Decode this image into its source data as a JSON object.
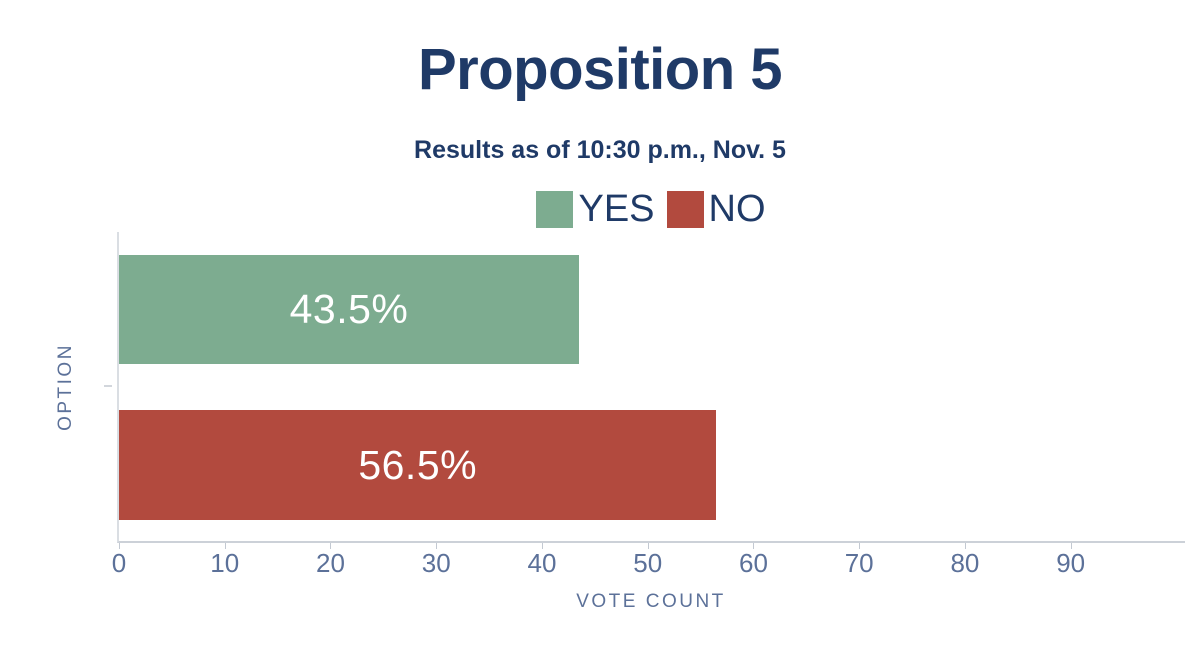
{
  "title": "Proposition 5",
  "subtitle": "Results as of 10:30 p.m., Nov. 5",
  "legend": [
    {
      "name": "yes",
      "label": "YES",
      "color": "#7dac90"
    },
    {
      "name": "no",
      "label": "NO",
      "color": "#b24a3e"
    }
  ],
  "chart_data": {
    "type": "bar",
    "orientation": "horizontal",
    "title": "Proposition 5",
    "subtitle": "Results as of 10:30 p.m., Nov. 5",
    "categories": [
      "OPTION"
    ],
    "series": [
      {
        "name": "YES",
        "values": [
          43.5
        ],
        "value_label": "43.5%",
        "color": "#7dac90"
      },
      {
        "name": "NO",
        "values": [
          56.5
        ],
        "value_label": "56.5%",
        "color": "#b24a3e"
      }
    ],
    "xlabel": "VOTE COUNT",
    "ylabel": "OPTION",
    "xlim": [
      0,
      101
    ],
    "xticks": [
      0,
      10,
      20,
      30,
      40,
      50,
      60,
      70,
      80,
      90
    ],
    "grid": false,
    "legend_position": "top",
    "value_labels_inside_bars": true
  },
  "colors": {
    "title_text": "#1f3a67",
    "axis_text": "#5c7199",
    "axis_line": "#ccd1d8",
    "bar_label_text": "#ffffff",
    "background": "#ffffff"
  }
}
